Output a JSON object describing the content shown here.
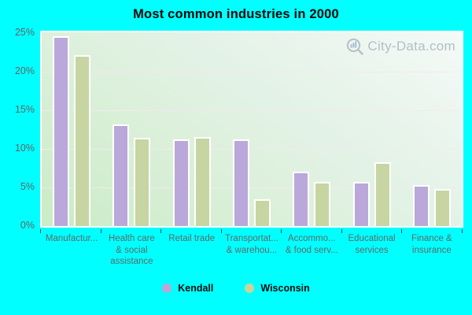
{
  "title": "Most common industries in 2000",
  "watermark": {
    "text": "City-Data.com"
  },
  "legend": {
    "items": [
      {
        "label": "Kendall",
        "color": "#bba6d8"
      },
      {
        "label": "Wisconsin",
        "color": "#cbd49a"
      }
    ]
  },
  "colors": {
    "page_background": "#00ffff",
    "kendall_bar": "#b9a8d9",
    "wisconsin_bar": "#c6d5a2",
    "gridline": "#f0e8ee",
    "axis_text": "#5e6a6a",
    "watermark_text": "#b3bfc7"
  },
  "chart_data": {
    "type": "bar",
    "title": "Most common industries in 2000",
    "categories_display": [
      [
        "Manufactur..."
      ],
      [
        "Health care",
        "& social",
        "assistance"
      ],
      [
        "Retail trade"
      ],
      [
        "Transportat...",
        "& warehou..."
      ],
      [
        "Accommo...",
        "& food serv..."
      ],
      [
        "Educational",
        "services"
      ],
      [
        "Finance &",
        "insurance"
      ]
    ],
    "series": [
      {
        "name": "Kendall",
        "color": "#b9a8d9",
        "values": [
          24.6,
          13.2,
          11.2,
          11.2,
          7.0,
          5.7,
          5.3
        ]
      },
      {
        "name": "Wisconsin",
        "color": "#c6d5a2",
        "values": [
          22.1,
          11.4,
          11.5,
          3.5,
          5.7,
          8.3,
          4.8
        ]
      }
    ],
    "ylim": [
      0,
      25
    ],
    "yticks": [
      {
        "value": 25,
        "label": "25%"
      },
      {
        "value": 20,
        "label": "20%"
      },
      {
        "value": 15,
        "label": "15%"
      },
      {
        "value": 10,
        "label": "10%"
      },
      {
        "value": 5,
        "label": "5%"
      },
      {
        "value": 0,
        "label": "0%"
      }
    ],
    "grid_values": [
      20,
      15,
      10,
      5
    ],
    "grid": true,
    "legend_position": "bottom"
  }
}
